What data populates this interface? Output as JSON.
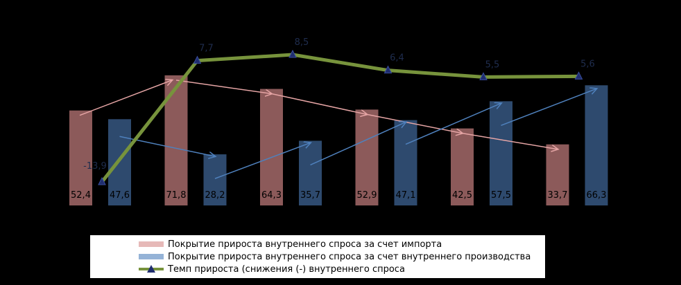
{
  "chart_data": {
    "type": "bar",
    "categories": [
      "",
      "",
      "",
      "",
      "",
      ""
    ],
    "series": [
      {
        "name": "Покрытие прироста внутреннего спроса за счет импорта",
        "kind": "bar",
        "color": "#8c5a5a",
        "values": [
          52.4,
          71.8,
          64.3,
          52.9,
          42.5,
          33.7
        ],
        "labels": [
          "52,4",
          "71,8",
          "64,3",
          "52,9",
          "42,5",
          "33,7"
        ]
      },
      {
        "name": "Покрытие прироста внутреннего спроса за счет внутреннего производства",
        "kind": "bar",
        "color": "#2e4a6e",
        "values": [
          47.6,
          28.2,
          35.7,
          47.1,
          57.5,
          66.3
        ],
        "labels": [
          "47,6",
          "28,2",
          "35,7",
          "47,1",
          "57,5",
          "66,3"
        ]
      },
      {
        "name": "Темп прироста (снижения (-) внутреннего спроса",
        "kind": "line",
        "color": "#77933c",
        "values": [
          -13.9,
          7.7,
          8.5,
          6.4,
          5.5,
          5.6
        ],
        "labels": [
          "-13,9",
          "7,7",
          "8,5",
          "6,4",
          "5,5",
          "5,6"
        ]
      }
    ],
    "trend_colors": {
      "import": "#e6a5a5",
      "production": "#4f81bd"
    },
    "grid": false,
    "legend_position": "bottom"
  },
  "legend": {
    "items": [
      {
        "label": "Покрытие прироста внутреннего спроса за счет импорта",
        "color": "#e6b9b8"
      },
      {
        "label": "Покрытие прироста внутреннего спроса за счет внутреннего производства",
        "color": "#95b3d7"
      },
      {
        "label": "Темп прироста (снижения (-) внутреннего спроса",
        "color": "#77933c",
        "marker": "#1f2d6e"
      }
    ]
  }
}
